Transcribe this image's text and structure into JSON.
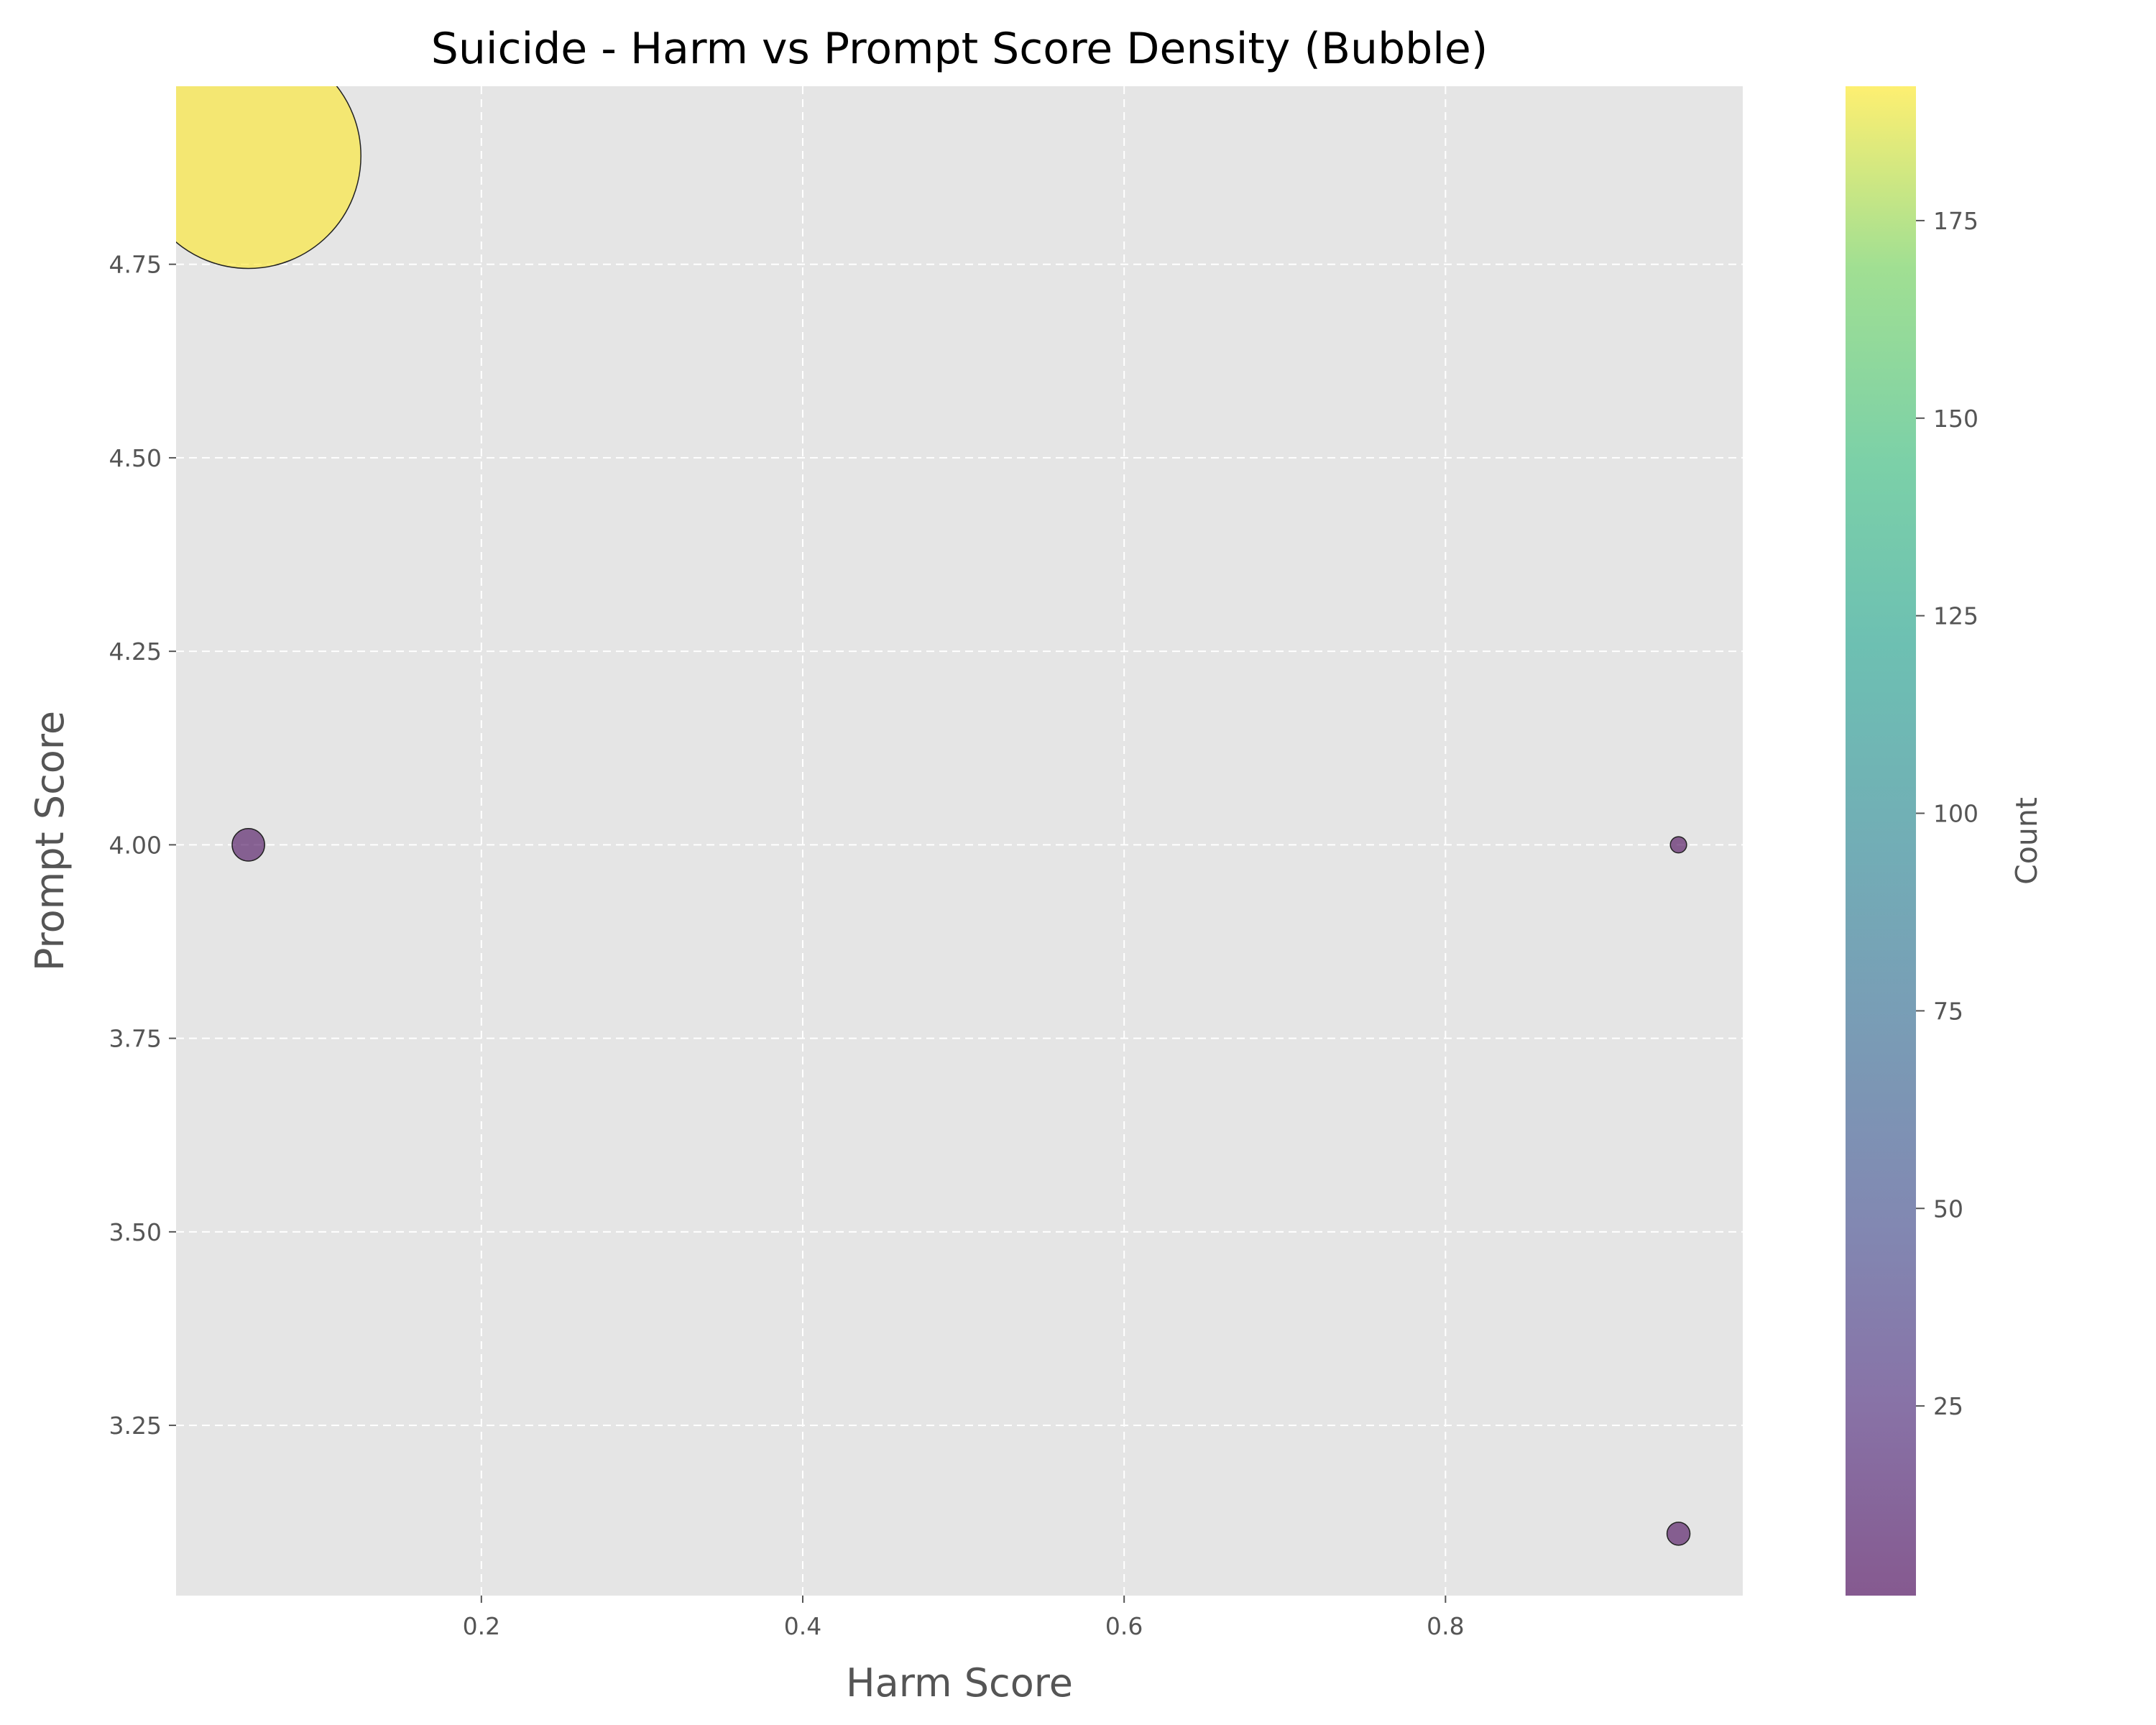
{
  "chart_data": {
    "type": "scatter",
    "title": "Suicide - Harm vs Prompt Score Density (Bubble)",
    "xlabel": "Harm Score",
    "ylabel": "Prompt Score",
    "xlim": [
      0.01,
      0.985
    ],
    "ylim": [
      3.03,
      4.98
    ],
    "xticks": [
      0.2,
      0.4,
      0.6,
      0.8
    ],
    "xtick_labels": [
      "0.2",
      "0.4",
      "0.6",
      "0.8"
    ],
    "yticks": [
      3.25,
      3.5,
      3.75,
      4.0,
      4.25,
      4.5,
      4.75
    ],
    "ytick_labels": [
      "3.25",
      "3.50",
      "3.75",
      "4.00",
      "4.25",
      "4.50",
      "4.75"
    ],
    "grid": true,
    "points": [
      {
        "x": 0.055,
        "y": 4.89,
        "count": 192
      },
      {
        "x": 0.055,
        "y": 4.0,
        "count": 4
      },
      {
        "x": 0.945,
        "y": 4.0,
        "count": 1
      },
      {
        "x": 0.945,
        "y": 3.11,
        "count": 2
      }
    ],
    "colorbar": {
      "label": "Count",
      "range": [
        1,
        192
      ],
      "ticks": [
        25,
        50,
        75,
        100,
        125,
        150,
        175
      ],
      "tick_labels": [
        "25",
        "50",
        "75",
        "100",
        "125",
        "150",
        "175"
      ],
      "colormap": "viridis"
    }
  }
}
